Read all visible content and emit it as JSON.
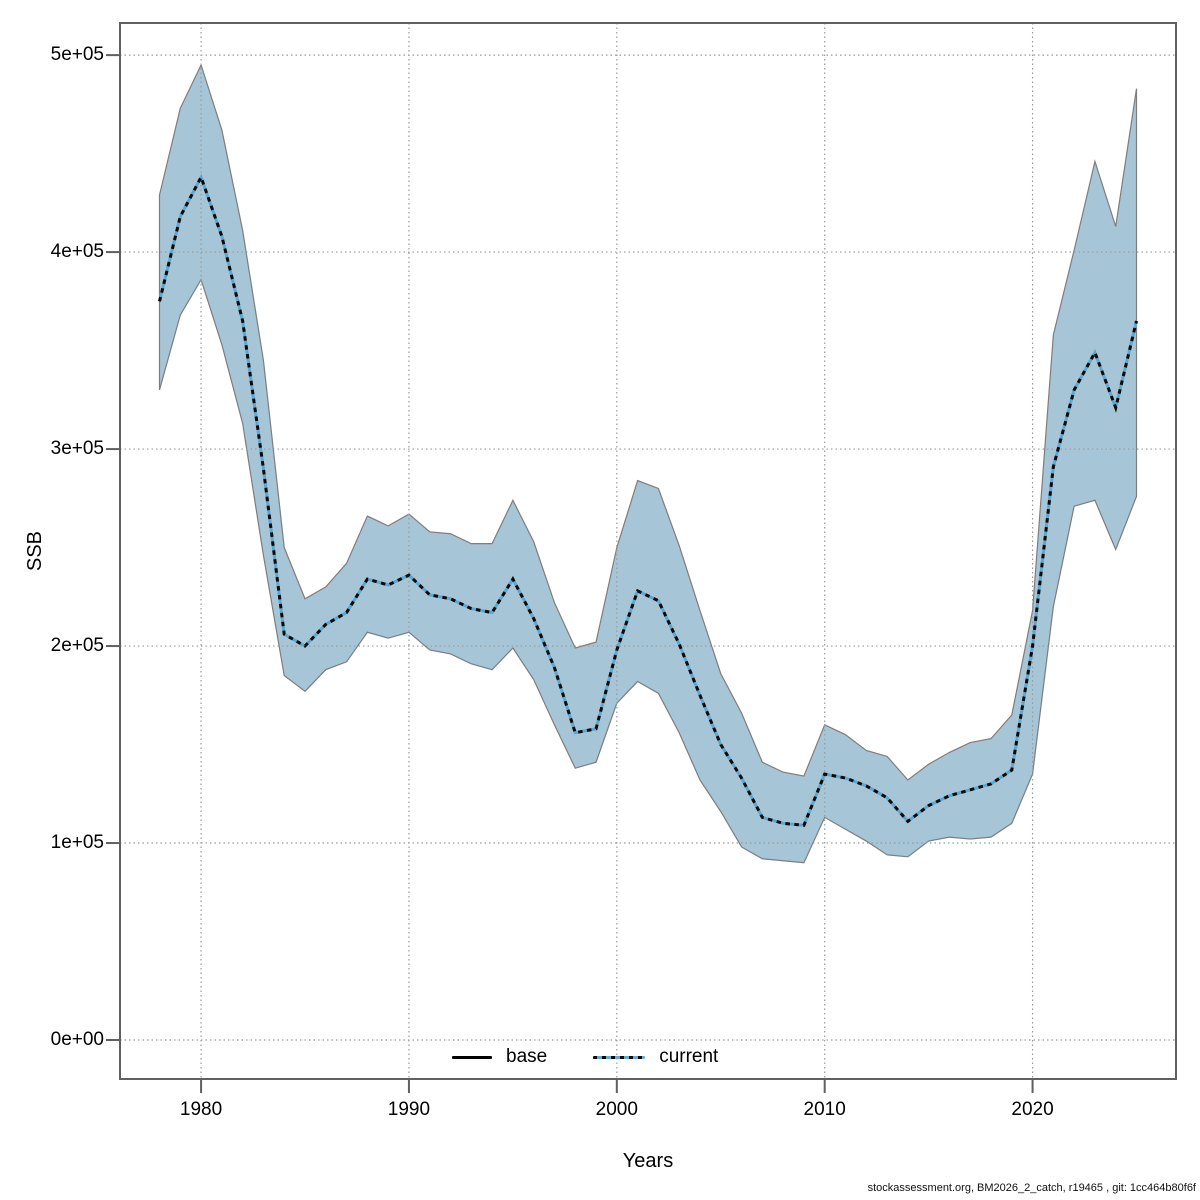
{
  "figure": {
    "footer": "stockassessment.org, BM2026_2_catch, r19465 , git: 1cc464b80f6f"
  },
  "axes": {
    "x_label": "Years",
    "y_label": "SSB"
  },
  "legend": {
    "items": [
      {
        "label": "base",
        "style": "solid",
        "color": "#000000"
      },
      {
        "label": "current",
        "style": "dotted",
        "color": "#68abd2"
      }
    ]
  },
  "colors": {
    "band_fill": "#a6c5d6",
    "band_edge": "#7d7d7d",
    "line_under": "#5ea7d0",
    "line_dash": "#0a0a0a",
    "grid": "#9a9a9a",
    "frame": "#606060",
    "tick": "#606060"
  },
  "chart_data": {
    "type": "line",
    "title": "",
    "xlabel": "Years",
    "ylabel": "SSB",
    "grid": "dotted",
    "legend_position": "bottom-center",
    "xlim": [
      1976.1,
      2026.9
    ],
    "ylim": [
      -19800,
      516300
    ],
    "x_ticks": [
      1980,
      1990,
      2000,
      2010,
      2020
    ],
    "x_tick_labels": [
      "1980",
      "1990",
      "2000",
      "2010",
      "2020"
    ],
    "y_ticks": [
      0,
      100000,
      200000,
      300000,
      400000,
      500000
    ],
    "y_tick_labels": [
      "0e+00",
      "1e+05",
      "2e+05",
      "3e+05",
      "4e+05",
      "5e+05"
    ],
    "x": [
      1978,
      1979,
      1980,
      1981,
      1982,
      1983,
      1984,
      1985,
      1986,
      1987,
      1988,
      1989,
      1990,
      1991,
      1992,
      1993,
      1994,
      1995,
      1996,
      1997,
      1998,
      1999,
      2000,
      2001,
      2002,
      2003,
      2004,
      2005,
      2006,
      2007,
      2008,
      2009,
      2010,
      2011,
      2012,
      2013,
      2014,
      2015,
      2016,
      2017,
      2018,
      2019,
      2020,
      2021,
      2022,
      2023,
      2024,
      2025
    ],
    "series": [
      {
        "name": "current",
        "style": "dotted",
        "values": [
          375000,
          418000,
          438000,
          408000,
          365000,
          290000,
          206000,
          200000,
          211000,
          217000,
          234000,
          231000,
          236000,
          226000,
          224000,
          219000,
          217000,
          234000,
          214000,
          189000,
          156000,
          158000,
          198000,
          228000,
          223000,
          201000,
          175000,
          150000,
          133000,
          113000,
          110000,
          109000,
          135000,
          133000,
          129000,
          123000,
          111000,
          119000,
          124000,
          127000,
          130000,
          137000,
          200000,
          291000,
          330000,
          349000,
          321000,
          365000
        ]
      }
    ],
    "band": {
      "name": "confidence-interval",
      "lower": [
        330000,
        368000,
        386000,
        353000,
        313000,
        246000,
        185000,
        177000,
        188000,
        192000,
        207000,
        204000,
        207000,
        198000,
        196000,
        191000,
        188000,
        199000,
        183000,
        160000,
        138000,
        141000,
        171000,
        182000,
        176000,
        156000,
        132000,
        116000,
        98000,
        92000,
        91000,
        90000,
        113000,
        107000,
        101000,
        94000,
        93000,
        101000,
        103000,
        102000,
        103000,
        110000,
        135000,
        220000,
        271000,
        274000,
        249000,
        276000
      ],
      "upper": [
        429000,
        473000,
        495000,
        462000,
        411000,
        345000,
        250000,
        224000,
        230000,
        242000,
        266000,
        261000,
        267000,
        258000,
        257000,
        252000,
        252000,
        274000,
        253000,
        222000,
        199000,
        202000,
        250000,
        284000,
        280000,
        251000,
        218000,
        186000,
        166000,
        141000,
        136000,
        134000,
        160000,
        155000,
        147000,
        144000,
        132000,
        140000,
        146000,
        151000,
        153000,
        165000,
        218000,
        358000,
        401000,
        446000,
        413000,
        483000
      ]
    }
  }
}
